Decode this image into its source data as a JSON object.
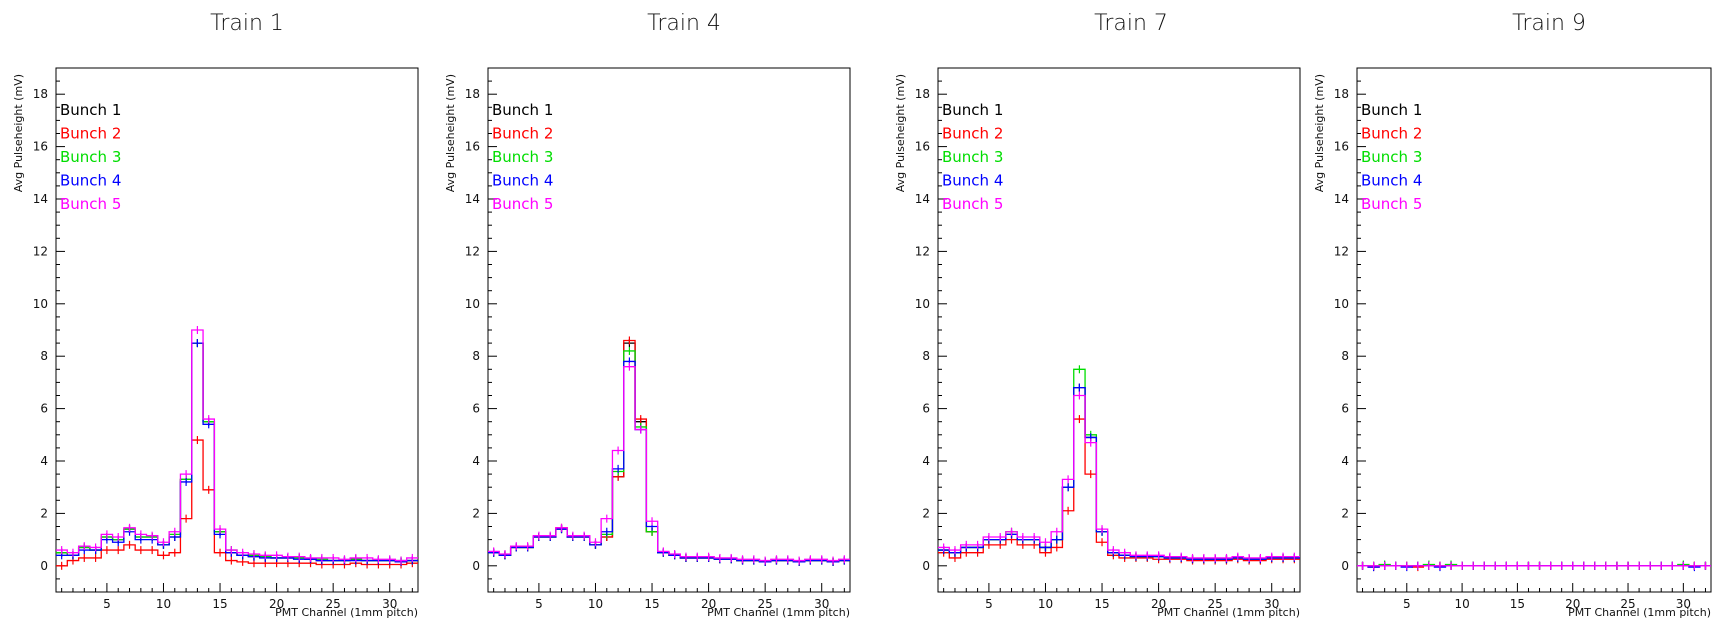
{
  "colors": {
    "frame": "#000000",
    "bunch1": "#000000",
    "bunch2": "#ff0000",
    "bunch3": "#00dd00",
    "bunch4": "#0000ff",
    "bunch5": "#ff00ff"
  },
  "chart_data": [
    {
      "type": "line",
      "step": true,
      "title": "Train 1",
      "xlabel": "PMT Channel (1mm pitch)",
      "ylabel": "Avg Pulseheight (mV)",
      "xlim": [
        0.5,
        32.5
      ],
      "ylim": [
        -1,
        19
      ],
      "xticks": [
        5,
        10,
        15,
        20,
        25,
        30
      ],
      "yticks": [
        0,
        2,
        4,
        6,
        8,
        10,
        12,
        14,
        16,
        18
      ],
      "legend_position": "top-left",
      "x": [
        1,
        2,
        3,
        4,
        5,
        6,
        7,
        8,
        9,
        10,
        11,
        12,
        13,
        14,
        15,
        16,
        17,
        18,
        19,
        20,
        21,
        22,
        23,
        24,
        25,
        26,
        27,
        28,
        29,
        30,
        31,
        32
      ],
      "series": [
        {
          "name": "Bunch 1",
          "color": "#000000",
          "values": [
            0.5,
            0.4,
            0.7,
            0.6,
            1.1,
            1.0,
            1.4,
            1.1,
            1.1,
            0.8,
            1.1,
            3.3,
            8.5,
            5.5,
            1.3,
            0.5,
            0.4,
            0.35,
            0.35,
            0.3,
            0.3,
            0.3,
            0.25,
            0.2,
            0.2,
            0.2,
            0.25,
            0.2,
            0.2,
            0.2,
            0.15,
            0.2
          ]
        },
        {
          "name": "Bunch 2",
          "color": "#ff0000",
          "values": [
            0.0,
            0.2,
            0.3,
            0.3,
            0.6,
            0.6,
            0.8,
            0.6,
            0.6,
            0.4,
            0.5,
            1.8,
            4.8,
            2.9,
            0.5,
            0.2,
            0.15,
            0.1,
            0.1,
            0.1,
            0.1,
            0.1,
            0.1,
            0.05,
            0.05,
            0.05,
            0.1,
            0.05,
            0.05,
            0.05,
            0.05,
            0.1
          ]
        },
        {
          "name": "Bunch 3",
          "color": "#00dd00",
          "values": [
            0.5,
            0.4,
            0.7,
            0.6,
            1.1,
            1.0,
            1.4,
            1.1,
            1.1,
            0.8,
            1.2,
            3.3,
            8.5,
            5.5,
            1.3,
            0.6,
            0.4,
            0.4,
            0.35,
            0.3,
            0.3,
            0.3,
            0.25,
            0.25,
            0.2,
            0.2,
            0.25,
            0.2,
            0.2,
            0.2,
            0.2,
            0.2
          ]
        },
        {
          "name": "Bunch 4",
          "color": "#0000ff",
          "values": [
            0.4,
            0.4,
            0.6,
            0.6,
            1.0,
            0.9,
            1.3,
            1.0,
            1.0,
            0.8,
            1.1,
            3.2,
            8.5,
            5.4,
            1.2,
            0.5,
            0.4,
            0.35,
            0.3,
            0.3,
            0.3,
            0.25,
            0.25,
            0.2,
            0.2,
            0.2,
            0.2,
            0.2,
            0.2,
            0.2,
            0.15,
            0.2
          ]
        },
        {
          "name": "Bunch 5",
          "color": "#ff00ff",
          "values": [
            0.6,
            0.5,
            0.75,
            0.7,
            1.2,
            1.1,
            1.45,
            1.2,
            1.15,
            0.9,
            1.3,
            3.5,
            9.0,
            5.6,
            1.4,
            0.6,
            0.5,
            0.45,
            0.4,
            0.4,
            0.35,
            0.35,
            0.3,
            0.3,
            0.3,
            0.25,
            0.3,
            0.3,
            0.25,
            0.25,
            0.2,
            0.3
          ]
        }
      ]
    },
    {
      "type": "line",
      "step": true,
      "title": "Train 4",
      "xlabel": "PMT Channel (1mm pitch)",
      "ylabel": "Avg Pulseheight (mV)",
      "xlim": [
        0.5,
        32.5
      ],
      "ylim": [
        -1,
        19
      ],
      "xticks": [
        5,
        10,
        15,
        20,
        25,
        30
      ],
      "yticks": [
        0,
        2,
        4,
        6,
        8,
        10,
        12,
        14,
        16,
        18
      ],
      "legend_position": "top-left",
      "x": [
        1,
        2,
        3,
        4,
        5,
        6,
        7,
        8,
        9,
        10,
        11,
        12,
        13,
        14,
        15,
        16,
        17,
        18,
        19,
        20,
        21,
        22,
        23,
        24,
        25,
        26,
        27,
        28,
        29,
        30,
        31,
        32
      ],
      "series": [
        {
          "name": "Bunch 1",
          "color": "#000000",
          "values": [
            0.5,
            0.4,
            0.7,
            0.7,
            1.1,
            1.1,
            1.4,
            1.1,
            1.1,
            0.8,
            1.1,
            3.4,
            8.5,
            5.5,
            1.3,
            0.5,
            0.4,
            0.3,
            0.3,
            0.3,
            0.25,
            0.25,
            0.2,
            0.2,
            0.15,
            0.2,
            0.2,
            0.15,
            0.2,
            0.2,
            0.15,
            0.2
          ]
        },
        {
          "name": "Bunch 2",
          "color": "#ff0000",
          "values": [
            0.5,
            0.4,
            0.7,
            0.7,
            1.1,
            1.1,
            1.45,
            1.1,
            1.1,
            0.8,
            1.1,
            3.4,
            8.6,
            5.6,
            1.3,
            0.5,
            0.4,
            0.3,
            0.3,
            0.3,
            0.25,
            0.25,
            0.2,
            0.2,
            0.15,
            0.2,
            0.2,
            0.15,
            0.2,
            0.2,
            0.15,
            0.2
          ]
        },
        {
          "name": "Bunch 3",
          "color": "#00dd00",
          "values": [
            0.5,
            0.4,
            0.7,
            0.7,
            1.1,
            1.1,
            1.4,
            1.1,
            1.1,
            0.8,
            1.2,
            3.6,
            8.2,
            5.3,
            1.3,
            0.5,
            0.4,
            0.3,
            0.3,
            0.3,
            0.25,
            0.25,
            0.2,
            0.2,
            0.15,
            0.2,
            0.2,
            0.15,
            0.2,
            0.2,
            0.15,
            0.2
          ]
        },
        {
          "name": "Bunch 4",
          "color": "#0000ff",
          "values": [
            0.5,
            0.4,
            0.7,
            0.7,
            1.1,
            1.1,
            1.4,
            1.1,
            1.1,
            0.8,
            1.3,
            3.7,
            7.8,
            5.2,
            1.5,
            0.5,
            0.4,
            0.3,
            0.3,
            0.3,
            0.25,
            0.25,
            0.2,
            0.2,
            0.15,
            0.2,
            0.2,
            0.15,
            0.2,
            0.2,
            0.15,
            0.2
          ]
        },
        {
          "name": "Bunch 5",
          "color": "#ff00ff",
          "values": [
            0.55,
            0.45,
            0.75,
            0.75,
            1.15,
            1.15,
            1.45,
            1.15,
            1.15,
            0.9,
            1.8,
            4.4,
            7.6,
            5.2,
            1.7,
            0.55,
            0.45,
            0.35,
            0.35,
            0.35,
            0.3,
            0.3,
            0.25,
            0.25,
            0.2,
            0.25,
            0.25,
            0.2,
            0.25,
            0.25,
            0.2,
            0.25
          ]
        }
      ]
    },
    {
      "type": "line",
      "step": true,
      "title": "Train 7",
      "xlabel": "PMT Channel (1mm pitch)",
      "ylabel": "Avg Pulseheight (mV)",
      "xlim": [
        0.5,
        32.5
      ],
      "ylim": [
        -1,
        19
      ],
      "xticks": [
        5,
        10,
        15,
        20,
        25,
        30
      ],
      "yticks": [
        0,
        2,
        4,
        6,
        8,
        10,
        12,
        14,
        16,
        18
      ],
      "legend_position": "top-left",
      "x": [
        1,
        2,
        3,
        4,
        5,
        6,
        7,
        8,
        9,
        10,
        11,
        12,
        13,
        14,
        15,
        16,
        17,
        18,
        19,
        20,
        21,
        22,
        23,
        24,
        25,
        26,
        27,
        28,
        29,
        30,
        31,
        32
      ],
      "series": [
        {
          "name": "Bunch 1",
          "color": "#000000",
          "values": [
            0.6,
            0.5,
            0.7,
            0.7,
            1.0,
            1.0,
            1.2,
            1.0,
            1.0,
            0.7,
            1.0,
            3.0,
            6.8,
            4.9,
            1.3,
            0.5,
            0.4,
            0.35,
            0.35,
            0.35,
            0.3,
            0.3,
            0.25,
            0.25,
            0.25,
            0.25,
            0.3,
            0.25,
            0.25,
            0.3,
            0.3,
            0.3
          ]
        },
        {
          "name": "Bunch 2",
          "color": "#ff0000",
          "values": [
            0.5,
            0.3,
            0.5,
            0.5,
            0.8,
            0.8,
            1.0,
            0.8,
            0.8,
            0.5,
            0.7,
            2.1,
            5.6,
            3.5,
            0.9,
            0.4,
            0.3,
            0.3,
            0.3,
            0.25,
            0.25,
            0.25,
            0.2,
            0.2,
            0.2,
            0.2,
            0.25,
            0.2,
            0.2,
            0.25,
            0.25,
            0.25
          ]
        },
        {
          "name": "Bunch 3",
          "color": "#00dd00",
          "values": [
            0.6,
            0.5,
            0.7,
            0.7,
            1.0,
            1.0,
            1.3,
            1.0,
            1.0,
            0.7,
            1.0,
            3.0,
            7.5,
            5.0,
            1.3,
            0.5,
            0.4,
            0.35,
            0.35,
            0.35,
            0.3,
            0.3,
            0.25,
            0.25,
            0.25,
            0.25,
            0.3,
            0.25,
            0.25,
            0.3,
            0.3,
            0.3
          ]
        },
        {
          "name": "Bunch 4",
          "color": "#0000ff",
          "values": [
            0.6,
            0.5,
            0.7,
            0.7,
            1.0,
            1.0,
            1.2,
            1.0,
            1.0,
            0.7,
            1.0,
            3.0,
            6.8,
            4.9,
            1.3,
            0.5,
            0.4,
            0.35,
            0.35,
            0.35,
            0.3,
            0.3,
            0.25,
            0.25,
            0.25,
            0.25,
            0.3,
            0.25,
            0.25,
            0.3,
            0.3,
            0.3
          ]
        },
        {
          "name": "Bunch 5",
          "color": "#ff00ff",
          "values": [
            0.7,
            0.6,
            0.8,
            0.8,
            1.1,
            1.1,
            1.3,
            1.1,
            1.1,
            0.9,
            1.3,
            3.3,
            6.5,
            4.7,
            1.4,
            0.6,
            0.5,
            0.4,
            0.4,
            0.4,
            0.35,
            0.35,
            0.3,
            0.3,
            0.3,
            0.3,
            0.35,
            0.3,
            0.3,
            0.35,
            0.35,
            0.35
          ]
        }
      ]
    },
    {
      "type": "line",
      "step": true,
      "title": "Train 9",
      "xlabel": "PMT Channel (1mm pitch)",
      "ylabel": "Avg Pulseheight (mV)",
      "xlim": [
        0.5,
        32.5
      ],
      "ylim": [
        -1,
        19
      ],
      "xticks": [
        5,
        10,
        15,
        20,
        25,
        30
      ],
      "yticks": [
        0,
        2,
        4,
        6,
        8,
        10,
        12,
        14,
        16,
        18
      ],
      "legend_position": "top-left",
      "x": [
        1,
        2,
        3,
        4,
        5,
        6,
        7,
        8,
        9,
        10,
        11,
        12,
        13,
        14,
        15,
        16,
        17,
        18,
        19,
        20,
        21,
        22,
        23,
        24,
        25,
        26,
        27,
        28,
        29,
        30,
        31,
        32
      ],
      "series": [
        {
          "name": "Bunch 1",
          "color": "#000000",
          "values": [
            0.0,
            0.0,
            0.0,
            0.0,
            0.0,
            0.0,
            0.0,
            0.0,
            0.0,
            0.0,
            0.0,
            0.0,
            0.0,
            0.0,
            0.0,
            0.0,
            0.0,
            0.0,
            0.0,
            0.0,
            0.0,
            0.0,
            0.0,
            0.0,
            0.0,
            0.0,
            0.0,
            0.0,
            0.0,
            0.0,
            0.0,
            0.0
          ]
        },
        {
          "name": "Bunch 2",
          "color": "#ff0000",
          "values": [
            0.0,
            -0.05,
            0.0,
            0.0,
            0.0,
            -0.05,
            0.0,
            0.0,
            0.0,
            0.0,
            0.0,
            0.0,
            0.0,
            0.0,
            0.0,
            0.0,
            0.0,
            0.0,
            0.0,
            0.0,
            0.0,
            0.0,
            0.0,
            0.0,
            0.0,
            0.0,
            0.0,
            0.0,
            0.0,
            0.0,
            0.0,
            0.0
          ]
        },
        {
          "name": "Bunch 3",
          "color": "#00dd00",
          "values": [
            0.0,
            0.0,
            0.05,
            0.0,
            0.0,
            0.0,
            0.05,
            0.0,
            0.05,
            0.0,
            0.0,
            0.0,
            0.0,
            0.0,
            0.0,
            0.0,
            0.0,
            0.0,
            0.0,
            0.0,
            0.0,
            0.0,
            0.0,
            0.0,
            0.0,
            0.0,
            0.0,
            0.0,
            0.0,
            0.05,
            0.0,
            0.0
          ]
        },
        {
          "name": "Bunch 4",
          "color": "#0000ff",
          "values": [
            0.0,
            -0.05,
            0.0,
            0.0,
            -0.05,
            0.0,
            0.0,
            -0.05,
            0.0,
            0.0,
            0.0,
            0.0,
            0.0,
            0.0,
            0.0,
            0.0,
            0.0,
            0.0,
            0.0,
            0.0,
            0.0,
            0.0,
            0.0,
            0.0,
            0.0,
            0.0,
            0.0,
            0.0,
            0.0,
            0.0,
            -0.05,
            0.0
          ]
        },
        {
          "name": "Bunch 5",
          "color": "#ff00ff",
          "values": [
            0.0,
            0.0,
            0.0,
            0.0,
            0.0,
            0.0,
            0.0,
            0.0,
            0.0,
            0.0,
            0.0,
            0.0,
            0.0,
            0.0,
            0.0,
            0.0,
            0.0,
            0.0,
            0.0,
            0.0,
            0.0,
            0.0,
            0.0,
            0.0,
            0.0,
            0.0,
            0.0,
            0.0,
            0.0,
            0.0,
            0.0,
            0.0
          ]
        }
      ]
    }
  ]
}
